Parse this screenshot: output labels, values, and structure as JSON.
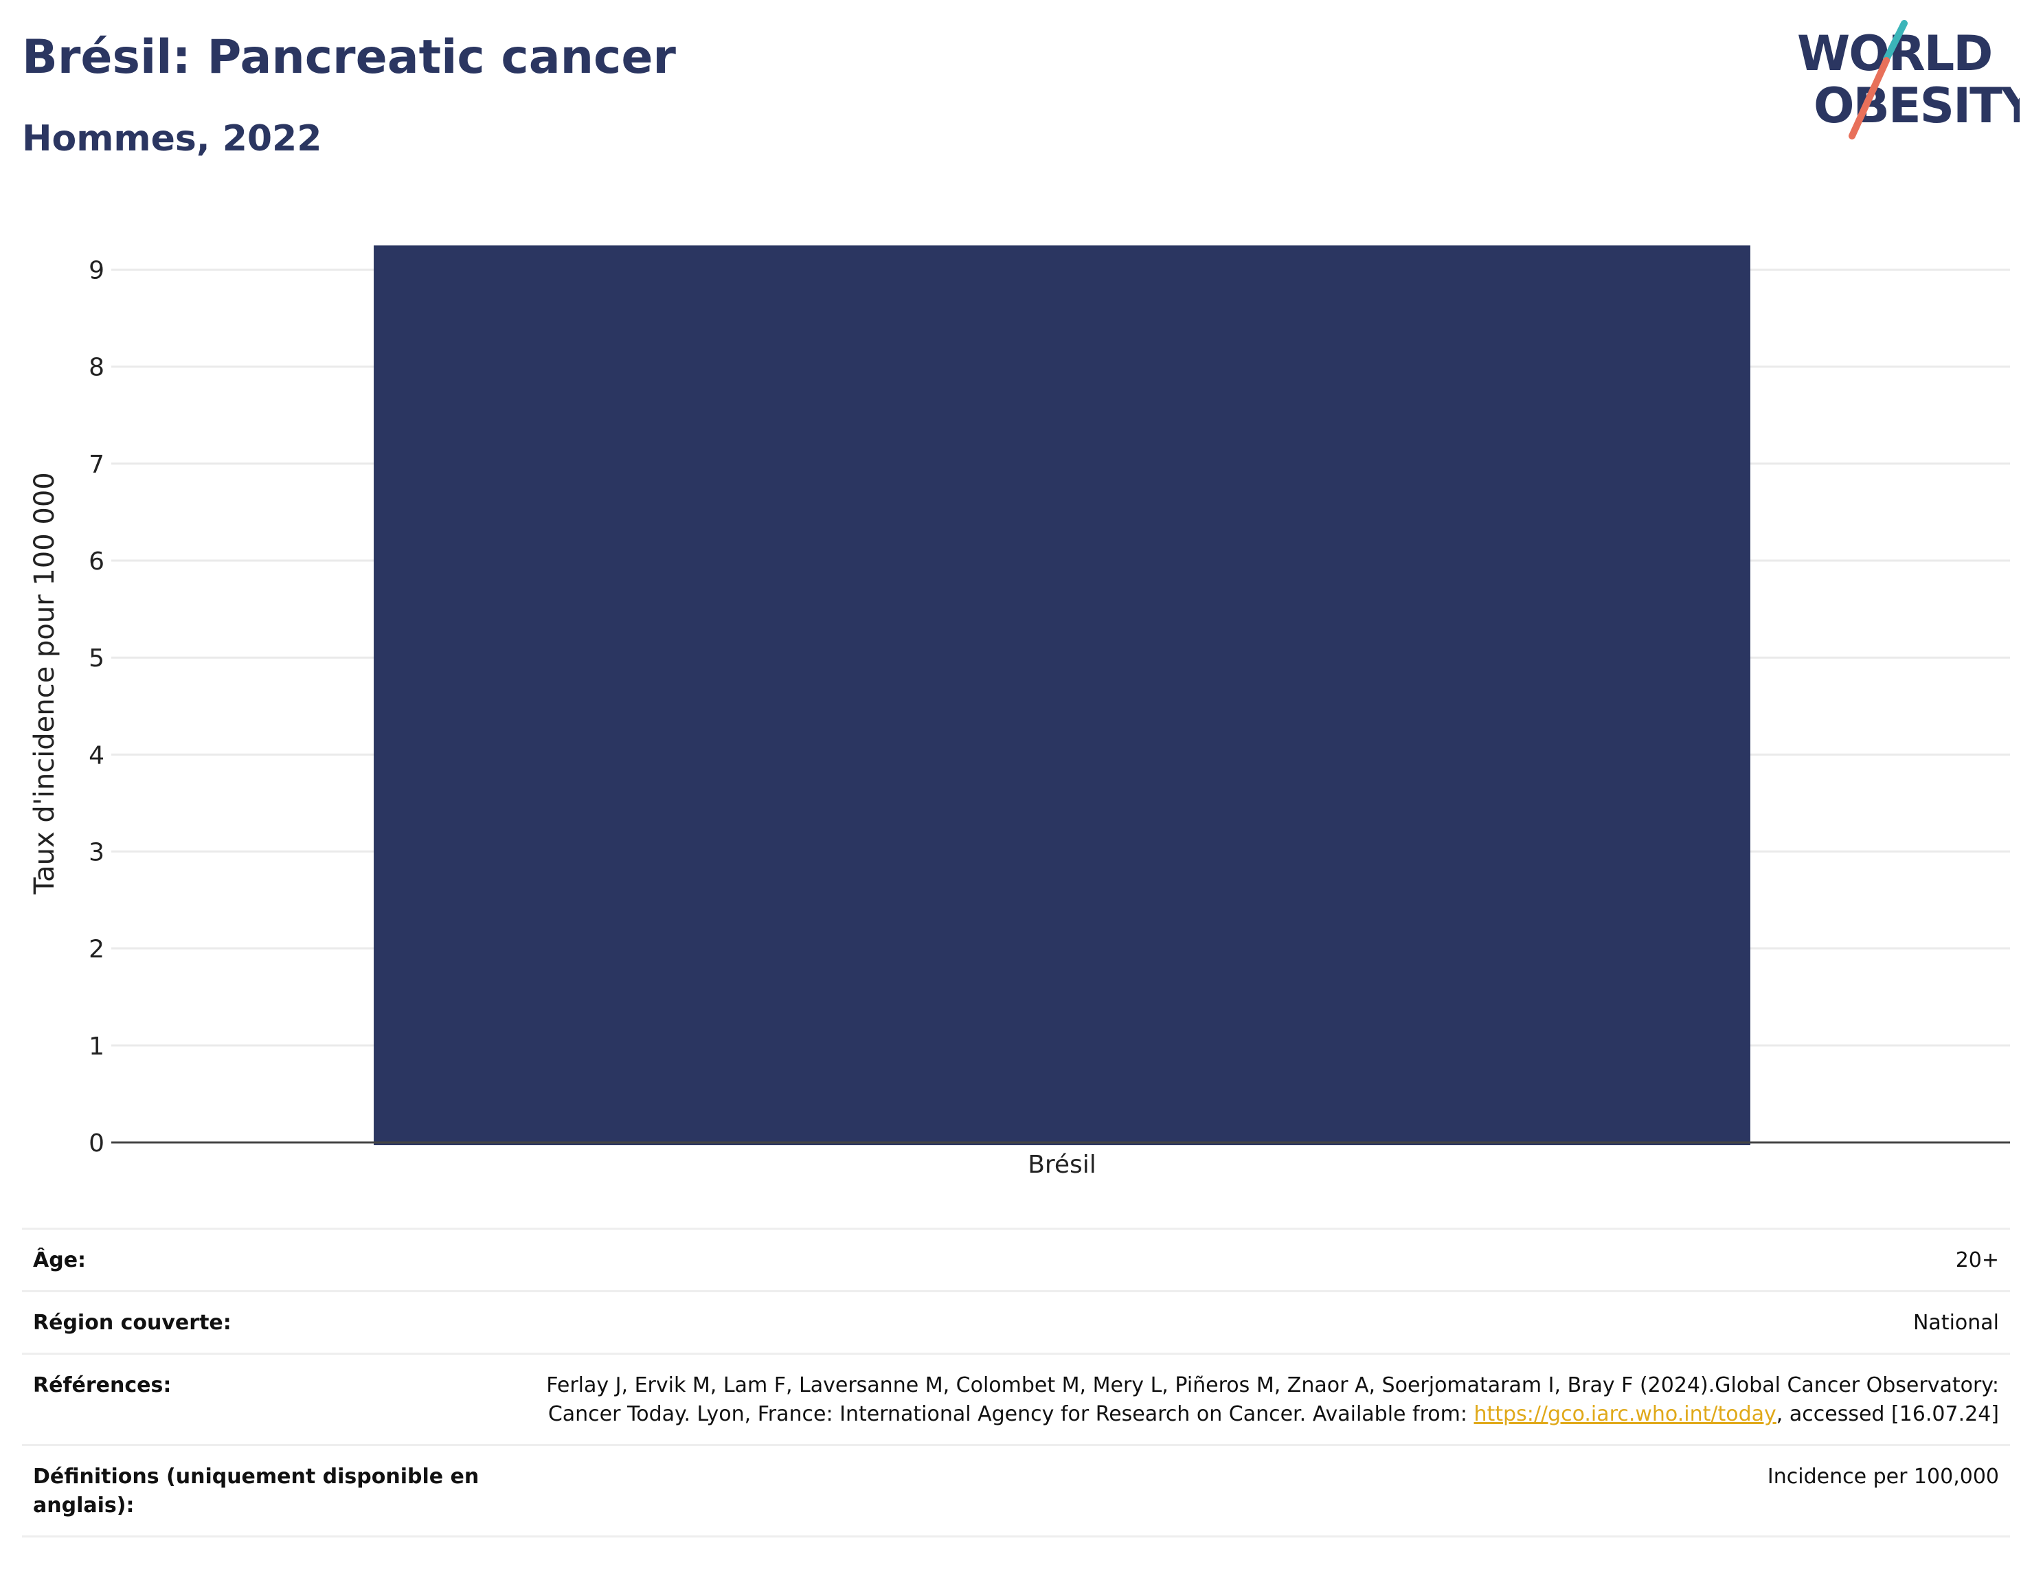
{
  "header": {
    "title": "Brésil: Pancreatic cancer",
    "subtitle": "Hommes, 2022"
  },
  "logo": {
    "line1": "WORLD",
    "line2": "OBESITY",
    "colors": {
      "text": "#2b3661",
      "slash_top": "#3bb5b9",
      "slash_bottom": "#e8705a"
    }
  },
  "chart_data": {
    "type": "bar",
    "categories": [
      "Brésil"
    ],
    "values": [
      9.25
    ],
    "ylabel": "Taux d'incidence pour 100 000",
    "ylim": [
      0,
      9.5
    ],
    "yticks": [
      0,
      1,
      2,
      3,
      4,
      5,
      6,
      7,
      8,
      9
    ],
    "grid": true,
    "bar_color": "#2b3661"
  },
  "meta": {
    "age_label": "Âge:",
    "age_value": "20+",
    "region_label": "Région couverte:",
    "region_value": "National",
    "refs_label": "Références:",
    "refs_text_1": "Ferlay J, Ervik M, Lam F, Laversanne M, Colombet M, Mery L, Piñeros M, Znaor A, Soerjomataram I, Bray F (2024).Global Cancer Observatory: Cancer Today. Lyon, France: International Agency for Research on Cancer. Available from: ",
    "refs_link": "https://gco.iarc.who.int/today",
    "refs_text_2": ", accessed [16.07.24]",
    "defs_label": "Définitions (uniquement disponible en anglais):",
    "defs_value": "Incidence per 100,000"
  }
}
